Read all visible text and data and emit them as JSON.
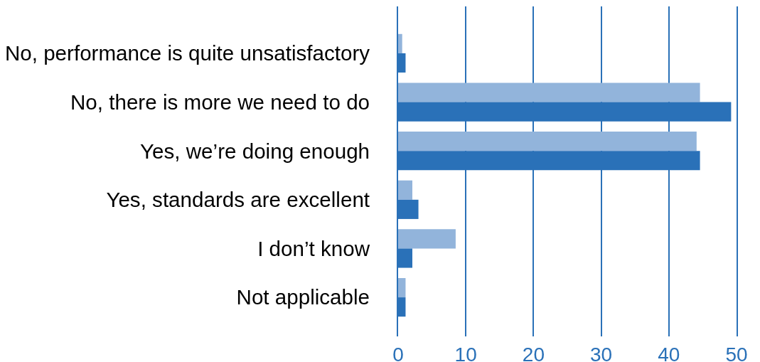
{
  "chart_data": {
    "type": "bar",
    "orientation": "horizontal",
    "categories": [
      "No, performance is quite unsatisfactory",
      "No, there is more we need to do",
      "Yes, we’re doing enough",
      "Yes, standards are excellent",
      "I don’t know",
      "Not applicable"
    ],
    "series": [
      {
        "color": "#92b4db",
        "values": [
          0.6,
          44.6,
          44.1,
          2.1,
          8.5,
          1.1
        ]
      },
      {
        "color": "#2a71b8",
        "values": [
          1.1,
          49.2,
          44.6,
          3.0,
          2.1,
          1.1
        ]
      }
    ],
    "xlim": [
      0,
      50
    ],
    "xticks": [
      0,
      10,
      20,
      30,
      40,
      50
    ],
    "grid": "x"
  }
}
